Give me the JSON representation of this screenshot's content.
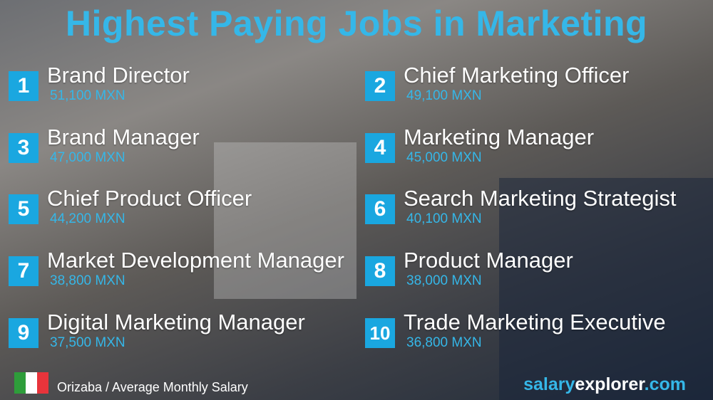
{
  "title": "Highest Paying Jobs in Marketing",
  "jobs": [
    {
      "rank": "1",
      "name": "Brand Director",
      "salary": "51,100 MXN"
    },
    {
      "rank": "2",
      "name": "Chief Marketing Officer",
      "salary": "49,100 MXN"
    },
    {
      "rank": "3",
      "name": "Brand Manager",
      "salary": "47,000 MXN"
    },
    {
      "rank": "4",
      "name": "Marketing Manager",
      "salary": "45,000 MXN"
    },
    {
      "rank": "5",
      "name": "Chief Product Officer",
      "salary": "44,200 MXN"
    },
    {
      "rank": "6",
      "name": "Search Marketing Strategist",
      "salary": "40,100 MXN"
    },
    {
      "rank": "7",
      "name": "Market Development Manager",
      "salary": "38,800 MXN"
    },
    {
      "rank": "8",
      "name": "Product Manager",
      "salary": "38,000 MXN"
    },
    {
      "rank": "9",
      "name": "Digital Marketing Manager",
      "salary": "37,500 MXN"
    },
    {
      "rank": "10",
      "name": "Trade Marketing Executive",
      "salary": "36,800 MXN"
    }
  ],
  "footer": {
    "location": "Orizaba / Average Monthly Salary",
    "brand_a": "salary",
    "brand_b": "explorer",
    "brand_c": ".com"
  },
  "colors": {
    "accent": "#1aa7e0",
    "flag": [
      "#2e9d3a",
      "#ffffff",
      "#e8343b"
    ]
  }
}
